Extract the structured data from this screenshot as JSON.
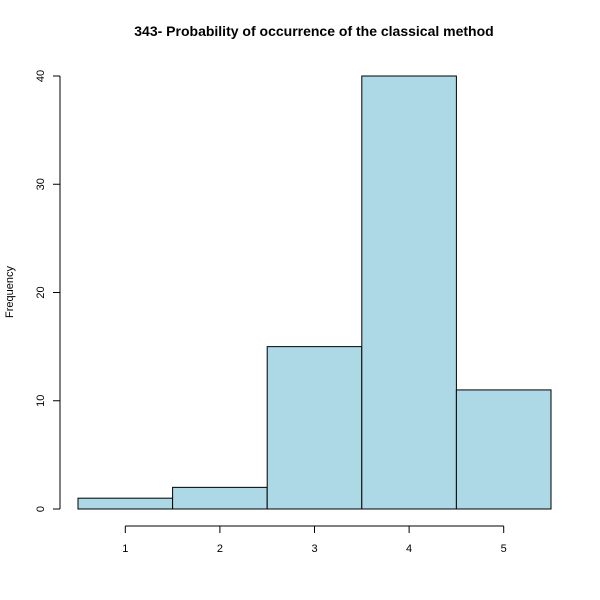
{
  "chart_data": {
    "type": "bar",
    "title": "343- Probability of occurrence of the classical method",
    "xlabel": "",
    "ylabel": "Frequency",
    "categories": [
      "1",
      "2",
      "3",
      "4",
      "5"
    ],
    "values": [
      1,
      2,
      15,
      40,
      11
    ],
    "x_ticks": [
      "1",
      "2",
      "3",
      "4",
      "5"
    ],
    "y_ticks": [
      "0",
      "10",
      "20",
      "30",
      "40"
    ],
    "ylim": [
      0,
      40
    ],
    "bar_color": "#add8e6",
    "grid": false,
    "legend": "none"
  }
}
